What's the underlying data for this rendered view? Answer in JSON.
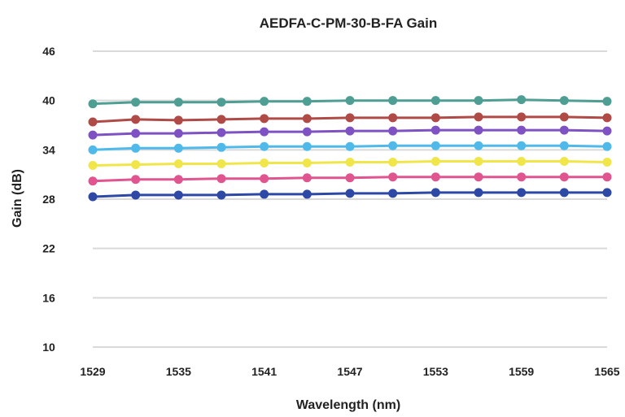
{
  "chart_data": {
    "type": "line",
    "title": "AEDFA-C-PM-30-B-FA Gain",
    "xlabel": "Wavelength (nm)",
    "ylabel": "Gain (dB)",
    "xlim": [
      1529,
      1565
    ],
    "ylim": [
      10,
      46
    ],
    "x_ticks": [
      1529,
      1535,
      1541,
      1547,
      1553,
      1559,
      1565
    ],
    "x_tick_labels": [
      "1529",
      "1535",
      "1541",
      "1547",
      "1553",
      "1559",
      "1565"
    ],
    "y_ticks": [
      10,
      16,
      22,
      28,
      34,
      40,
      46
    ],
    "y_tick_labels": [
      "10",
      "16",
      "22",
      "28",
      "34",
      "40",
      "46"
    ],
    "grid": true,
    "legend": "none",
    "x": [
      1529,
      1532,
      1535,
      1538,
      1541,
      1544,
      1547,
      1550,
      1553,
      1556,
      1559,
      1562,
      1565
    ],
    "series": [
      {
        "color": "#4f9e94",
        "values": [
          39.6,
          39.8,
          39.8,
          39.8,
          39.9,
          39.9,
          40.0,
          40.0,
          40.0,
          40.0,
          40.1,
          40.0,
          39.9
        ]
      },
      {
        "color": "#b04a46",
        "values": [
          37.4,
          37.7,
          37.6,
          37.7,
          37.8,
          37.8,
          37.9,
          37.9,
          37.9,
          38.0,
          38.0,
          38.0,
          37.9
        ]
      },
      {
        "color": "#7e52c2",
        "values": [
          35.8,
          36.0,
          36.0,
          36.1,
          36.2,
          36.2,
          36.3,
          36.3,
          36.4,
          36.4,
          36.4,
          36.4,
          36.3
        ]
      },
      {
        "color": "#4fb9ea",
        "values": [
          34.0,
          34.2,
          34.2,
          34.3,
          34.4,
          34.4,
          34.4,
          34.5,
          34.5,
          34.5,
          34.5,
          34.5,
          34.4
        ]
      },
      {
        "color": "#f0e64a",
        "values": [
          32.1,
          32.2,
          32.3,
          32.3,
          32.4,
          32.4,
          32.5,
          32.5,
          32.6,
          32.6,
          32.6,
          32.6,
          32.5
        ]
      },
      {
        "color": "#e0558f",
        "values": [
          30.2,
          30.4,
          30.4,
          30.5,
          30.5,
          30.6,
          30.6,
          30.7,
          30.7,
          30.7,
          30.7,
          30.7,
          30.7
        ]
      },
      {
        "color": "#2e48a6",
        "values": [
          28.3,
          28.5,
          28.5,
          28.5,
          28.6,
          28.6,
          28.7,
          28.7,
          28.8,
          28.8,
          28.8,
          28.8,
          28.8
        ]
      }
    ]
  }
}
